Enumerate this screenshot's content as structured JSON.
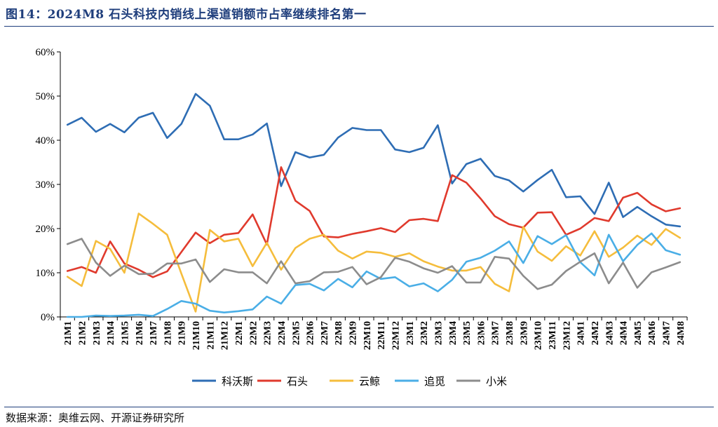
{
  "figure": {
    "title": "图14：2024M8 石头科技内销线上渠道销额市占率继续排名第一",
    "source": "数据来源：奥维云网、开源证券研究所"
  },
  "colors": {
    "科沃斯": "#2e6db4",
    "石头": "#e03a2d",
    "云鲸": "#f5bd3c",
    "追觅": "#4aaee6",
    "小米": "#8c8c8c"
  },
  "chart_data": {
    "type": "line",
    "title": "",
    "xlabel": "",
    "ylabel": "",
    "ylim": [
      0,
      60
    ],
    "yticks": [
      "0%",
      "10%",
      "20%",
      "30%",
      "40%",
      "50%",
      "60%"
    ],
    "grid": false,
    "legend": "bottom",
    "categories": [
      "21M1",
      "21M2",
      "21M3",
      "21M4",
      "21M5",
      "21M6",
      "21M7",
      "21M8",
      "21M9",
      "21M10",
      "21M11",
      "21M12",
      "22M1",
      "22M2",
      "22M3",
      "22M4",
      "22M5",
      "22M6",
      "22M7",
      "22M8",
      "22M9",
      "22M10",
      "22M11",
      "22M12",
      "23M1",
      "23M2",
      "23M3",
      "23M4",
      "23M5",
      "23M6",
      "23M7",
      "23M8",
      "23M9",
      "23M10",
      "23M11",
      "23M12",
      "24M1",
      "24M2",
      "24M3",
      "24M4",
      "24M5",
      "24M6",
      "24M7",
      "24M8"
    ],
    "series": [
      {
        "name": "科沃斯",
        "values": [
          43.5,
          45.1,
          41.9,
          43.7,
          41.8,
          45.1,
          46.2,
          40.5,
          43.7,
          50.5,
          47.8,
          40.2,
          40.2,
          41.3,
          43.8,
          29.6,
          37.3,
          36.1,
          36.7,
          40.6,
          42.8,
          42.3,
          42.3,
          37.9,
          37.3,
          38.3,
          43.4,
          30.2,
          34.6,
          35.8,
          31.9,
          30.9,
          28.4,
          31.0,
          33.3,
          27.1,
          27.3,
          23.3,
          30.4,
          22.6,
          24.9,
          22.8,
          20.9,
          20.5
        ]
      },
      {
        "name": "石头",
        "values": [
          10.4,
          11.3,
          10.0,
          17.1,
          12.1,
          10.7,
          9.0,
          10.3,
          14.7,
          19.1,
          16.7,
          18.6,
          19.0,
          23.2,
          16.4,
          33.9,
          26.3,
          24.0,
          18.2,
          18.0,
          18.8,
          19.4,
          20.1,
          19.2,
          21.9,
          22.2,
          21.7,
          32.1,
          30.4,
          26.8,
          22.8,
          21.0,
          20.2,
          23.6,
          23.7,
          18.6,
          20.0,
          22.4,
          21.7,
          27.0,
          28.1,
          25.5,
          23.9,
          24.6
        ]
      },
      {
        "name": "云鲸",
        "values": [
          9.1,
          7.0,
          17.2,
          15.4,
          10.0,
          23.4,
          21.1,
          18.6,
          9.8,
          1.2,
          19.7,
          17.1,
          17.7,
          11.5,
          16.8,
          10.7,
          15.6,
          17.7,
          18.6,
          15.0,
          13.2,
          14.8,
          14.5,
          13.6,
          14.4,
          12.6,
          11.4,
          10.5,
          10.5,
          11.3,
          7.5,
          5.8,
          20.4,
          14.8,
          12.7,
          16.0,
          13.9,
          19.4,
          13.6,
          15.7,
          18.4,
          16.3,
          19.9,
          17.9
        ]
      },
      {
        "name": "追觅",
        "values": [
          0.0,
          0.0,
          0.3,
          0.2,
          0.3,
          0.5,
          0.2,
          1.8,
          3.6,
          3.0,
          1.4,
          1.0,
          1.3,
          1.7,
          4.6,
          3.0,
          7.2,
          7.5,
          6.0,
          8.6,
          6.7,
          10.3,
          8.6,
          9.0,
          6.9,
          7.6,
          5.8,
          8.4,
          12.5,
          13.4,
          15.0,
          17.1,
          12.2,
          18.3,
          16.5,
          18.5,
          12.4,
          9.4,
          18.6,
          12.6,
          16.3,
          18.9,
          15.1,
          14.1
        ]
      },
      {
        "name": "小米",
        "values": [
          16.5,
          17.7,
          12.3,
          9.3,
          11.6,
          9.7,
          9.8,
          12.1,
          12.1,
          13.0,
          7.9,
          10.8,
          10.1,
          10.1,
          7.6,
          12.6,
          7.6,
          8.1,
          10.1,
          10.2,
          11.3,
          7.4,
          9.0,
          13.4,
          12.5,
          11.0,
          10.0,
          11.5,
          7.8,
          7.8,
          13.6,
          13.2,
          9.3,
          6.3,
          7.3,
          10.4,
          12.5,
          14.4,
          7.6,
          12.3,
          6.6,
          10.1,
          11.2,
          12.4
        ]
      }
    ]
  }
}
